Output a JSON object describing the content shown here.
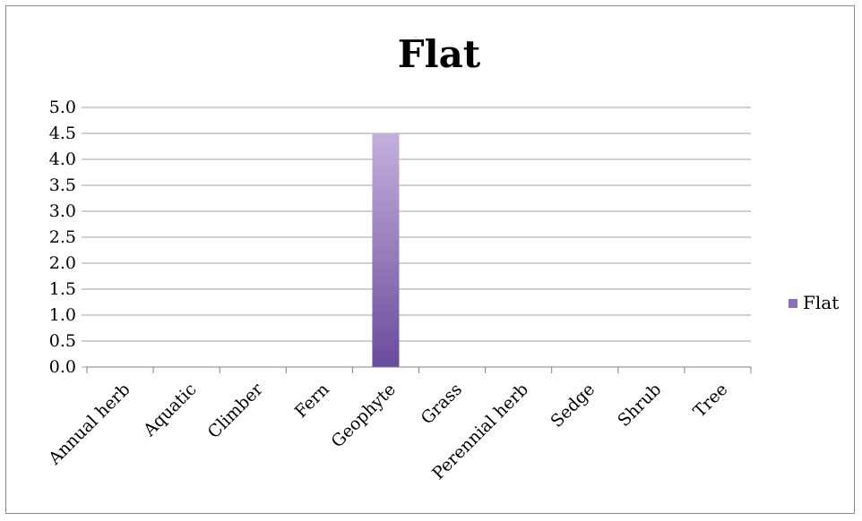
{
  "chart_data": {
    "type": "bar",
    "title": "Flat",
    "xlabel": "",
    "ylabel": "",
    "categories": [
      "Annual herb",
      "Aquatic",
      "Climber",
      "Fern",
      "Geophyte",
      "Grass",
      "Perennial herb",
      "Sedge",
      "Shrub",
      "Tree"
    ],
    "series": [
      {
        "name": "Flat",
        "values": [
          0,
          0,
          0,
          0,
          4.5,
          0,
          0,
          0,
          0,
          0
        ]
      }
    ],
    "ylim": [
      0,
      5.0
    ],
    "yticks": [
      "0.0",
      "0.5",
      "1.0",
      "1.5",
      "2.0",
      "2.5",
      "3.0",
      "3.5",
      "4.0",
      "4.5",
      "5.0"
    ],
    "grid": true,
    "legend_position": "right",
    "colors": {
      "bar_top": "#c4b0dc",
      "bar_bottom": "#6a4b9c",
      "legend": "#8a70b8",
      "grid": "#a0a0a0"
    }
  }
}
